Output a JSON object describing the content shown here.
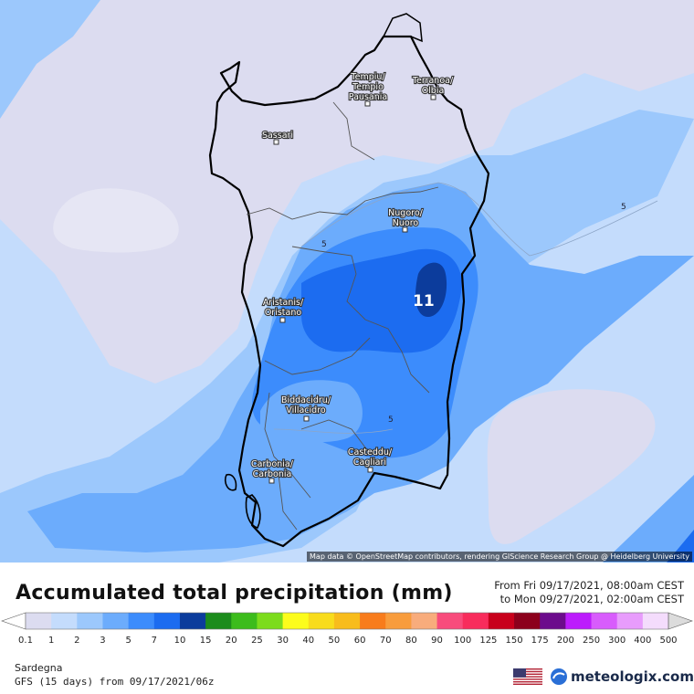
{
  "map": {
    "credit": "Map data © OpenStreetMap contributors, rendering GIScience Research Group @ Heidelberg University",
    "max_value_label": "11",
    "contour_labels": [
      "5",
      "5",
      "5"
    ],
    "cities": [
      {
        "id": "tempio",
        "lines": [
          "Tempiu/",
          "Tempio",
          "Pausania"
        ]
      },
      {
        "id": "olbia",
        "lines": [
          "Terranoa/",
          "Olbia"
        ]
      },
      {
        "id": "sassari",
        "lines": [
          "Sassari"
        ]
      },
      {
        "id": "nuoro",
        "lines": [
          "Nugoro/",
          "Nuoro"
        ]
      },
      {
        "id": "oristano",
        "lines": [
          "Aristanis/",
          "Oristano"
        ]
      },
      {
        "id": "villacidro",
        "lines": [
          "Biddacidru/",
          "Villacidro"
        ]
      },
      {
        "id": "cagliari",
        "lines": [
          "Casteddu/",
          "Cagliari"
        ]
      },
      {
        "id": "carbonia",
        "lines": [
          "Carbonia/",
          "Carbonia"
        ]
      }
    ]
  },
  "legend": {
    "title": "Accumulated total precipitation (mm)",
    "period_from": "From Fri 09/17/2021, 08:00am CEST",
    "period_to": "to Mon 09/27/2021, 02:00am CEST",
    "ticks": [
      "0.1",
      "1",
      "2",
      "3",
      "5",
      "7",
      "10",
      "15",
      "20",
      "25",
      "30",
      "40",
      "50",
      "60",
      "70",
      "80",
      "90",
      "100",
      "125",
      "150",
      "175",
      "200",
      "250",
      "300",
      "400",
      "500"
    ],
    "colors": [
      "#dcdcf0",
      "#c4dcfc",
      "#9cc8fc",
      "#6cacfc",
      "#3c8cfc",
      "#1c6cf0",
      "#0c3c9c",
      "#1c8c1c",
      "#3cbc1c",
      "#7cdc1c",
      "#fcfc1c",
      "#f8dc1c",
      "#f8bc1c",
      "#f87c1c",
      "#f89c3c",
      "#f8ac7c",
      "#f84c7c",
      "#f82c5c",
      "#c8001c",
      "#8c001c",
      "#6c0c8c",
      "#bc1cfc",
      "#d85cfc",
      "#e89cfc",
      "#f4dcfc",
      "#dcdcdc"
    ]
  },
  "footer": {
    "region": "Sardegna",
    "model": "GFS (15 days) from 09/17/2021/06z",
    "brand": "meteologix.com"
  }
}
